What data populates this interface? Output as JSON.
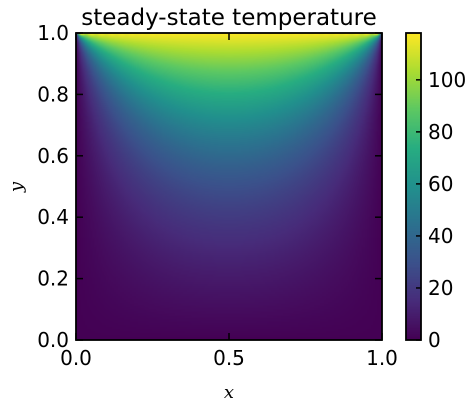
{
  "chart_data": {
    "type": "heatmap",
    "title": "steady-state temperature",
    "xlabel": "x",
    "ylabel": "y",
    "xlim": [
      0.0,
      1.0
    ],
    "ylim": [
      0.0,
      1.0
    ],
    "x_ticks": [
      "0.0",
      "0.5",
      "1.0"
    ],
    "x_tick_values": [
      0.0,
      0.5,
      1.0
    ],
    "y_ticks": [
      "0.0",
      "0.2",
      "0.4",
      "0.6",
      "0.8",
      "1.0"
    ],
    "y_tick_values": [
      0.0,
      0.2,
      0.4,
      0.6,
      0.8,
      1.0
    ],
    "colorbar": {
      "range": [
        0,
        118
      ],
      "ticks": [
        "0",
        "20",
        "40",
        "60",
        "80",
        "100"
      ],
      "tick_values": [
        0,
        20,
        40,
        60,
        80,
        100
      ],
      "colormap": "viridis"
    },
    "field": {
      "description_values": "Laplace solution, T=0 on left/right/bottom, hot top edge",
      "top_boundary_max": 118,
      "interior_samples": [
        {
          "x": 0.5,
          "y": 0.9,
          "value": 60
        },
        {
          "x": 0.5,
          "y": 0.8,
          "value": 45
        },
        {
          "x": 0.5,
          "y": 0.6,
          "value": 30
        },
        {
          "x": 0.5,
          "y": 0.4,
          "value": 18
        },
        {
          "x": 0.5,
          "y": 0.2,
          "value": 8
        },
        {
          "x": 0.5,
          "y": 0.0,
          "value": 0
        }
      ]
    },
    "grid": false
  }
}
